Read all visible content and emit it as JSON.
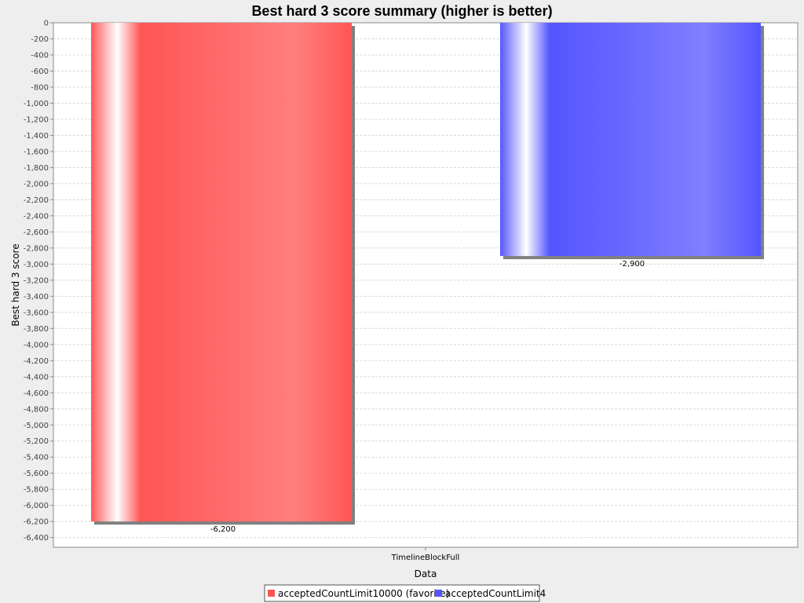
{
  "chart_data": {
    "type": "bar",
    "title": "Best hard 3 score summary (higher is better)",
    "xlabel": "Data",
    "ylabel": "Best hard 3 score",
    "categories": [
      "TimelineBlockFull"
    ],
    "series": [
      {
        "name": "acceptedCountLimit10000 (favorite)",
        "values": [
          -6200
        ],
        "color": "#ff5555"
      },
      {
        "name": "acceptedCountLimit4",
        "values": [
          -2900
        ],
        "color": "#5555ff"
      }
    ],
    "data_labels": [
      "-6,200",
      "-2,900"
    ],
    "ylim": [
      -6500,
      0
    ],
    "yticks": [
      0,
      -200,
      -400,
      -600,
      -800,
      -1000,
      -1200,
      -1400,
      -1600,
      -1800,
      -2000,
      -2200,
      -2400,
      -2600,
      -2800,
      -3000,
      -3200,
      -3400,
      -3600,
      -3800,
      -4000,
      -4200,
      -4400,
      -4600,
      -4800,
      -5000,
      -5200,
      -5400,
      -5600,
      -5800,
      -6000,
      -6200,
      -6400
    ],
    "ytick_labels": [
      "0",
      "-200",
      "-400",
      "-600",
      "-800",
      "-1,000",
      "-1,200",
      "-1,400",
      "-1,600",
      "-1,800",
      "-2,000",
      "-2,200",
      "-2,400",
      "-2,600",
      "-2,800",
      "-3,000",
      "-3,200",
      "-3,400",
      "-3,600",
      "-3,800",
      "-4,000",
      "-4,200",
      "-4,400",
      "-4,600",
      "-4,800",
      "-5,000",
      "-5,200",
      "-5,400",
      "-5,600",
      "-5,800",
      "-6,000",
      "-6,200",
      "-6,400"
    ],
    "grid": true,
    "legend_position": "bottom"
  }
}
